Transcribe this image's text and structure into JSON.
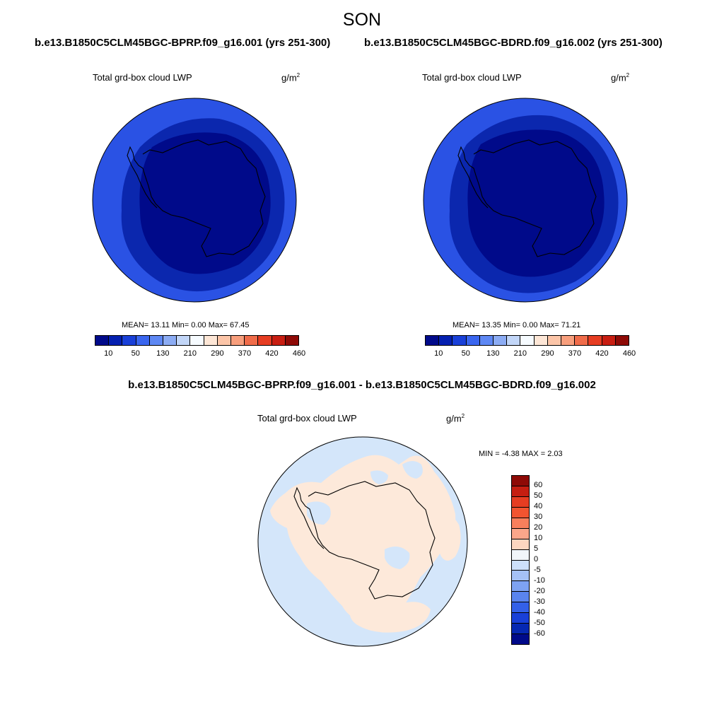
{
  "season": "SON",
  "case1_title": "b.e13.B1850C5CLM45BGC-BPRP.f09_g16.001 (yrs 251-300)",
  "case2_title": "b.e13.B1850C5CLM45BGC-BDRD.f09_g16.002 (yrs 251-300)",
  "diff_title": "b.e13.B1850C5CLM45BGC-BPRP.f09_g16.001 - b.e13.B1850C5CLM45BGC-BDRD.f09_g16.002",
  "panels": [
    {
      "variable": "Total grd-box cloud LWP",
      "units_base": "g/m",
      "units_exp": "2",
      "stats": "MEAN=  13.11  Min=   0.00  Max=  67.45"
    },
    {
      "variable": "Total grd-box cloud LWP",
      "units_base": "g/m",
      "units_exp": "2",
      "stats": "MEAN=  13.35  Min=   0.00  Max=  71.21"
    }
  ],
  "diff_panel": {
    "variable": "Total grd-box cloud LWP",
    "units_base": "g/m",
    "units_exp": "2",
    "stats": "MIN =  -4.38 MAX =   2.03"
  },
  "abs_colorbar": {
    "colors": [
      "#000a8a",
      "#0420b0",
      "#1940d8",
      "#3a66ef",
      "#5e88f4",
      "#8cacf4",
      "#c2d6f8",
      "#f6fbff",
      "#fde6d6",
      "#fcc5a8",
      "#f89f7d",
      "#f06c4a",
      "#e63d22",
      "#c81e12",
      "#8e0a06"
    ],
    "tick_labels": [
      "10",
      "50",
      "130",
      "210",
      "290",
      "370",
      "420",
      "460"
    ]
  },
  "diff_colorbar": {
    "colors": [
      "#8e0a06",
      "#c51e11",
      "#e63d22",
      "#f25430",
      "#f87f5c",
      "#fba68a",
      "#fcd6c0",
      "#f2f6fa",
      "#cde0fa",
      "#a5c1f6",
      "#7ea2f2",
      "#5a84ee",
      "#3360e8",
      "#1940d8",
      "#0628b2",
      "#000a8a"
    ],
    "labels": [
      "60",
      "50",
      "40",
      "30",
      "20",
      "10",
      "5",
      "0",
      "-5",
      "-10",
      "-20",
      "-30",
      "-40",
      "-50",
      "-60"
    ]
  }
}
